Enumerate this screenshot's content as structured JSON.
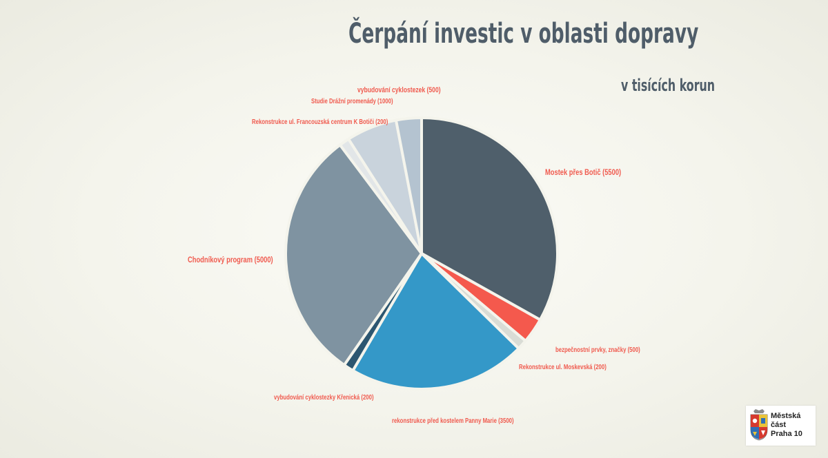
{
  "slide": {
    "title": "Čerpání investic v oblasti dopravy",
    "subtitle": "v tisících korun"
  },
  "logo": {
    "line1": "Městská",
    "line2": "část",
    "line3": "Praha 10"
  },
  "colors": {
    "label": "#f05a4e",
    "title": "#4f5d69",
    "separator": "#f4f4ec"
  },
  "chart_data": {
    "type": "pie",
    "unit": "tisíce korun",
    "slices": [
      {
        "label": "Mostek přes Botič (5500)",
        "value": 5500,
        "color": "#4f5f6b"
      },
      {
        "label": "bezpečnostní prvky, značky (500)",
        "value": 500,
        "color": "#f4594d"
      },
      {
        "label": "Rekonstrukce ul. Moskevská (200)",
        "value": 200,
        "color": "#d9dcd5"
      },
      {
        "label": "rekonstrukce před kostelem Panny Marie (3500)",
        "value": 3500,
        "color": "#3498c8"
      },
      {
        "label": "vybudování cyklostezky Křenická (200)",
        "value": 200,
        "color": "#2c5670"
      },
      {
        "label": "Chodníkový program (5000)",
        "value": 5000,
        "color": "#7f93a1"
      },
      {
        "label": "Rekonstrukce ul. Francouzská centrum K Botiči (200)",
        "value": 200,
        "color": "#e2e6e8"
      },
      {
        "label": "Studie Drážní promenády (1000)",
        "value": 1000,
        "color": "#c9d3dc"
      },
      {
        "label": "vybudování cyklostezek (500)",
        "value": 500,
        "color": "#b4c3d0"
      }
    ]
  }
}
